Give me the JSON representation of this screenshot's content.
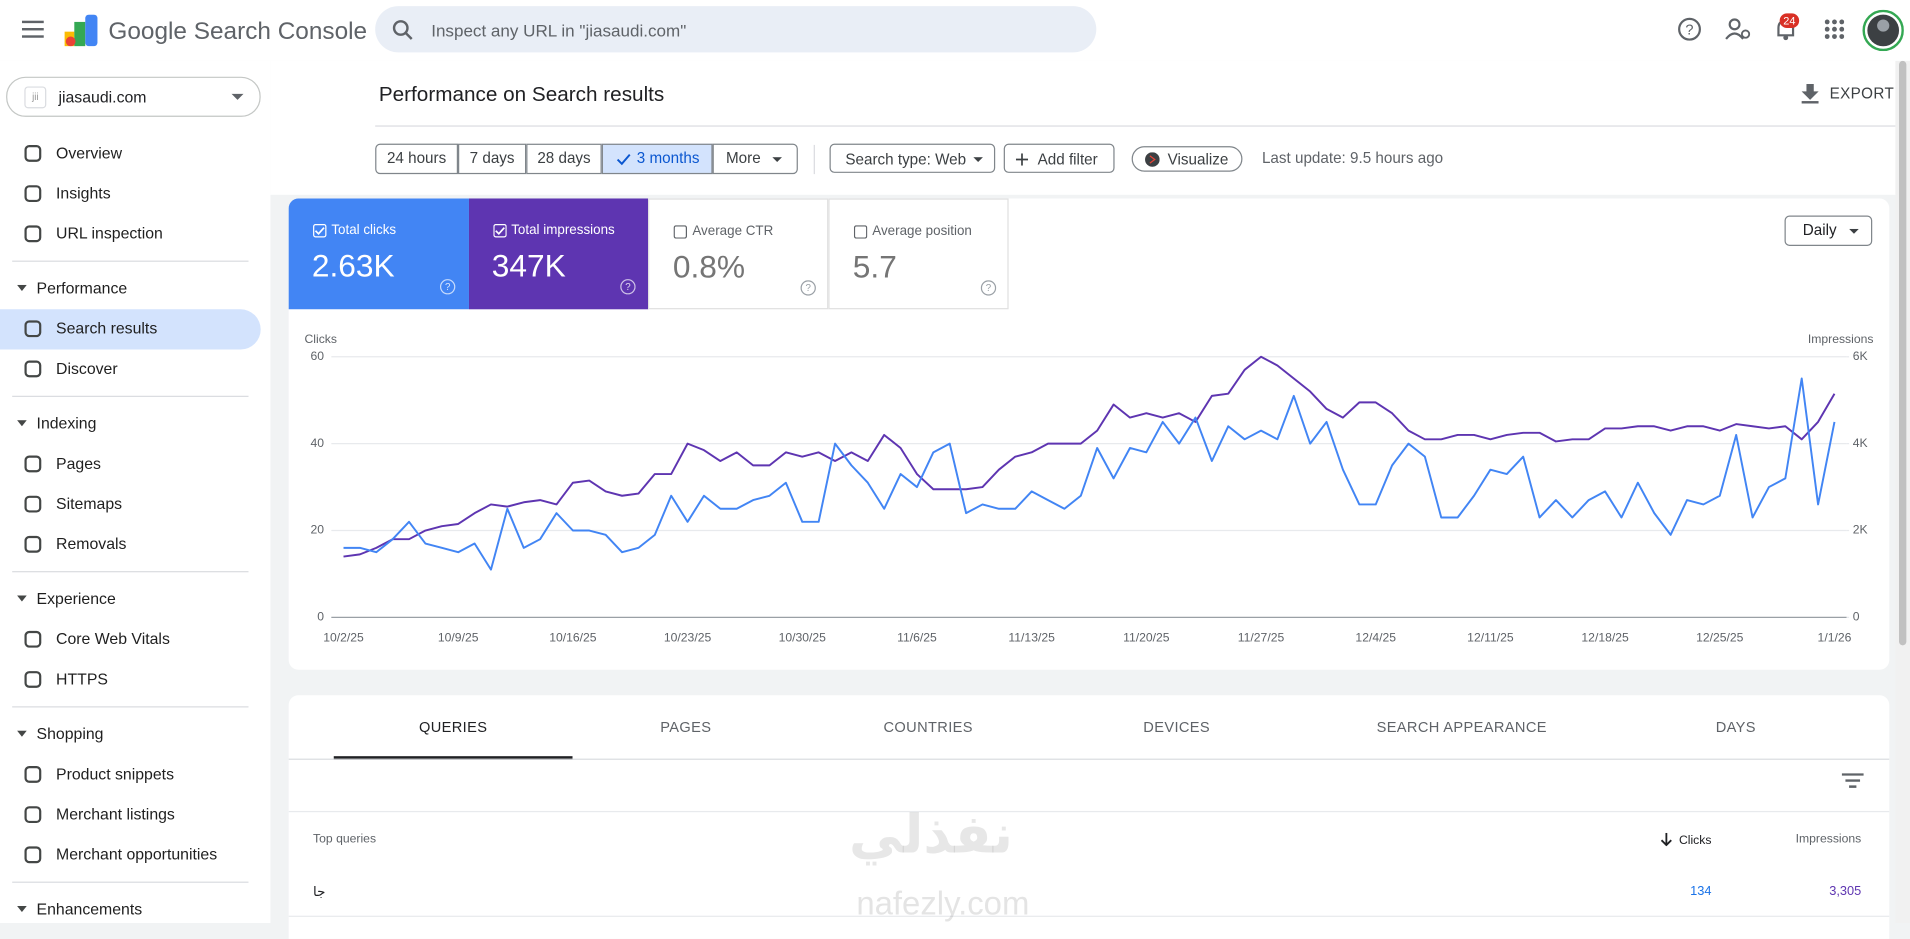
{
  "header": {
    "app_name": "Google Search Console",
    "search_placeholder": "Inspect any URL in \"jiasaudi.com\"",
    "notification_count": "24"
  },
  "property": "jiasaudi.com",
  "nav": {
    "top": [
      "Overview",
      "Insights",
      "URL inspection"
    ],
    "sections": [
      {
        "title": "Performance",
        "items": [
          "Search results",
          "Discover"
        ]
      },
      {
        "title": "Indexing",
        "items": [
          "Pages",
          "Sitemaps",
          "Removals"
        ]
      },
      {
        "title": "Experience",
        "items": [
          "Core Web Vitals",
          "HTTPS"
        ]
      },
      {
        "title": "Shopping",
        "items": [
          "Product snippets",
          "Merchant listings",
          "Merchant opportunities"
        ]
      },
      {
        "title": "Enhancements",
        "items": []
      }
    ]
  },
  "page_title": "Performance on Search results",
  "export": "EXPORT",
  "filters": {
    "date_ranges": [
      "24 hours",
      "7 days",
      "28 days",
      "3 months",
      "More"
    ],
    "search_type": "Search type: Web",
    "add_filter": "Add filter",
    "visualize": "Visualize",
    "last_update": "Last update: 9.5 hours ago"
  },
  "metrics": [
    {
      "label": "Total clicks",
      "value": "2.63K"
    },
    {
      "label": "Total impressions",
      "value": "347K"
    },
    {
      "label": "Average CTR",
      "value": "0.8%"
    },
    {
      "label": "Average position",
      "value": "5.7"
    }
  ],
  "granularity": "Daily",
  "chart_data": {
    "type": "line",
    "y_label": "Clicks",
    "y2_label": "Impressions",
    "grid": true,
    "categories": [
      "10/2/25",
      null,
      null,
      null,
      null,
      null,
      null,
      "10/9/25",
      null,
      null,
      null,
      null,
      null,
      null,
      "10/16/25",
      null,
      null,
      null,
      null,
      null,
      null,
      "10/23/25",
      null,
      null,
      null,
      null,
      null,
      null,
      "10/30/25",
      null,
      null,
      null,
      null,
      null,
      null,
      "11/6/25",
      null,
      null,
      null,
      null,
      null,
      null,
      "11/13/25",
      null,
      null,
      null,
      null,
      null,
      null,
      "11/20/25",
      null,
      null,
      null,
      null,
      null,
      null,
      "11/27/25",
      null,
      null,
      null,
      null,
      null,
      null,
      "12/4/25",
      null,
      null,
      null,
      null,
      null,
      null,
      "12/11/25",
      null,
      null,
      null,
      null,
      null,
      null,
      "12/18/25",
      null,
      null,
      null,
      null,
      null,
      null,
      "12/25/25",
      null,
      null,
      null,
      null,
      null,
      null,
      "1/1/26"
    ],
    "ylim": [
      0,
      60
    ],
    "yticks": [
      0,
      20,
      40,
      60
    ],
    "y2lim": [
      0,
      6000
    ],
    "y2ticks": [
      0,
      {
        "value": 2000,
        "label": "2K"
      },
      {
        "value": 4000,
        "label": "4K"
      },
      {
        "value": 6000,
        "label": "6K"
      }
    ],
    "series": [
      {
        "name": "Clicks",
        "color": "#4285f4",
        "values": [
          16,
          16,
          15,
          18,
          22,
          17,
          16,
          15,
          17,
          11,
          25,
          16,
          18,
          24,
          20,
          20,
          19,
          15,
          16,
          19,
          28,
          22,
          28,
          25,
          25,
          27,
          28,
          31,
          22,
          22,
          40,
          35,
          31,
          25,
          33,
          30,
          38,
          40,
          24,
          26,
          25,
          25,
          29,
          27,
          25,
          28,
          39,
          32,
          39,
          38,
          45,
          40,
          46,
          36,
          44,
          41,
          43,
          41,
          51,
          40,
          45,
          34,
          26,
          26,
          35,
          40,
          37,
          23,
          23,
          28,
          34,
          33,
          37,
          23,
          27,
          23,
          27,
          29,
          23,
          31,
          24,
          19,
          27,
          26,
          28,
          42,
          23,
          30,
          32,
          55,
          26,
          45
        ]
      },
      {
        "name": "Impressions",
        "color": "#5e35b1",
        "axis": "y2",
        "values": [
          1400,
          1450,
          1600,
          1800,
          1800,
          2000,
          2100,
          2150,
          2400,
          2600,
          2550,
          2650,
          2700,
          2600,
          3100,
          3150,
          2900,
          2800,
          2850,
          3300,
          3300,
          4000,
          3850,
          3600,
          3800,
          3500,
          3500,
          3800,
          3700,
          3800,
          3600,
          3800,
          3600,
          4200,
          3900,
          3300,
          2950,
          2950,
          2950,
          3000,
          3400,
          3700,
          3800,
          4000,
          4000,
          4000,
          4300,
          4900,
          4600,
          4700,
          4600,
          4700,
          4500,
          5100,
          5150,
          5700,
          6000,
          5800,
          5500,
          5200,
          4800,
          4600,
          4950,
          4950,
          4700,
          4300,
          4100,
          4100,
          4200,
          4200,
          4100,
          4200,
          4250,
          4250,
          4050,
          4100,
          4100,
          4350,
          4350,
          4400,
          4400,
          4300,
          4400,
          4400,
          4300,
          4450,
          4400,
          4350,
          4400,
          4100,
          4500,
          5150
        ]
      }
    ]
  },
  "tabs": [
    "QUERIES",
    "PAGES",
    "COUNTRIES",
    "DEVICES",
    "SEARCH APPEARANCE",
    "DAYS"
  ],
  "table": {
    "columns": [
      "Top queries",
      "Clicks",
      "Impressions"
    ],
    "rows": [
      [
        "جا",
        "134",
        "3,305"
      ]
    ]
  },
  "watermark": {
    "arabic": "نفذلي",
    "latin": "nafezly.com"
  }
}
